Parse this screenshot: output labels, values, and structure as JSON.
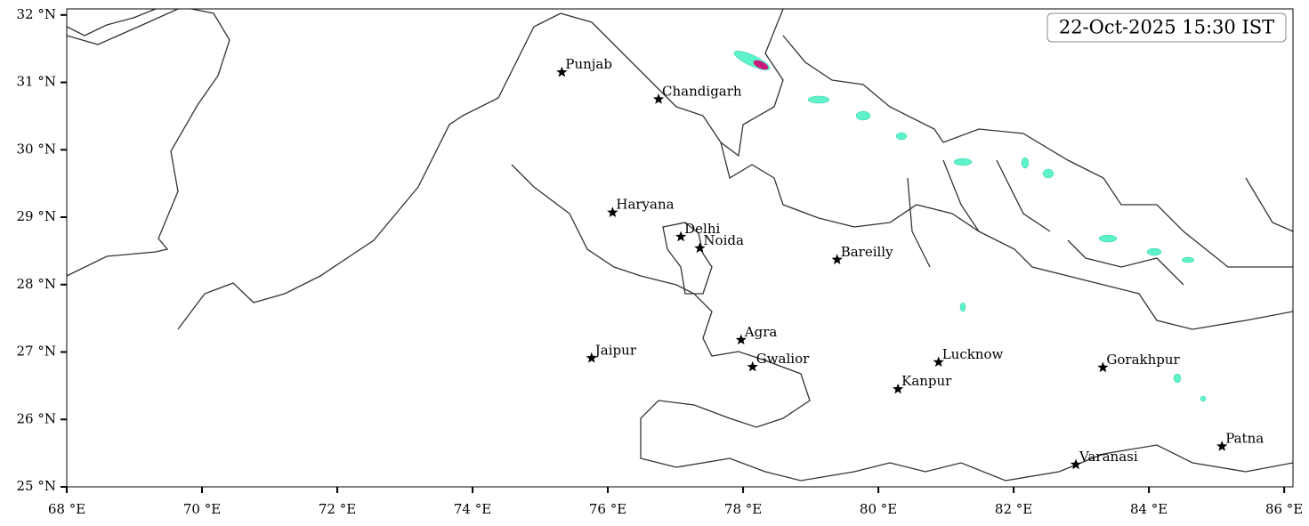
{
  "timestamp": "22-Oct-2025 15:30 IST",
  "xlim": [
    68,
    86.13
  ],
  "ylim": [
    25,
    32.09
  ],
  "xticks": [
    {
      "value": 68,
      "label": "68 °E"
    },
    {
      "value": 70,
      "label": "70 °E"
    },
    {
      "value": 72,
      "label": "72 °E"
    },
    {
      "value": 74,
      "label": "74 °E"
    },
    {
      "value": 76,
      "label": "76 °E"
    },
    {
      "value": 78,
      "label": "78 °E"
    },
    {
      "value": 80,
      "label": "80 °E"
    },
    {
      "value": 82,
      "label": "82 °E"
    },
    {
      "value": 84,
      "label": "84 °E"
    },
    {
      "value": 86,
      "label": "86 °E"
    }
  ],
  "yticks": [
    {
      "value": 25,
      "label": "25 °N"
    },
    {
      "value": 26,
      "label": "26 °N"
    },
    {
      "value": 27,
      "label": "27 °N"
    },
    {
      "value": 28,
      "label": "28 °N"
    },
    {
      "value": 29,
      "label": "29 °N"
    },
    {
      "value": 30,
      "label": "30 °N"
    },
    {
      "value": 31,
      "label": "31 °N"
    },
    {
      "value": 32,
      "label": "32 °N"
    }
  ],
  "places": [
    {
      "name": "Punjab",
      "lon": 75.32,
      "lat": 31.15
    },
    {
      "name": "Chandigarh",
      "lon": 76.75,
      "lat": 30.75
    },
    {
      "name": "Haryana",
      "lon": 76.07,
      "lat": 29.07
    },
    {
      "name": "Delhi",
      "lon": 77.08,
      "lat": 28.71
    },
    {
      "name": "Noida",
      "lon": 77.36,
      "lat": 28.54
    },
    {
      "name": "Bareilly",
      "lon": 79.39,
      "lat": 28.37
    },
    {
      "name": "Agra",
      "lon": 77.97,
      "lat": 27.18
    },
    {
      "name": "Jaipur",
      "lon": 75.76,
      "lat": 26.91
    },
    {
      "name": "Gwalior",
      "lon": 78.14,
      "lat": 26.78
    },
    {
      "name": "Lucknow",
      "lon": 80.89,
      "lat": 26.85
    },
    {
      "name": "Kanpur",
      "lon": 80.29,
      "lat": 26.45
    },
    {
      "name": "Gorakhpur",
      "lon": 83.32,
      "lat": 26.77
    },
    {
      "name": "Varanasi",
      "lon": 82.92,
      "lat": 25.33
    },
    {
      "name": "Patna",
      "lon": 85.08,
      "lat": 25.6
    }
  ]
}
